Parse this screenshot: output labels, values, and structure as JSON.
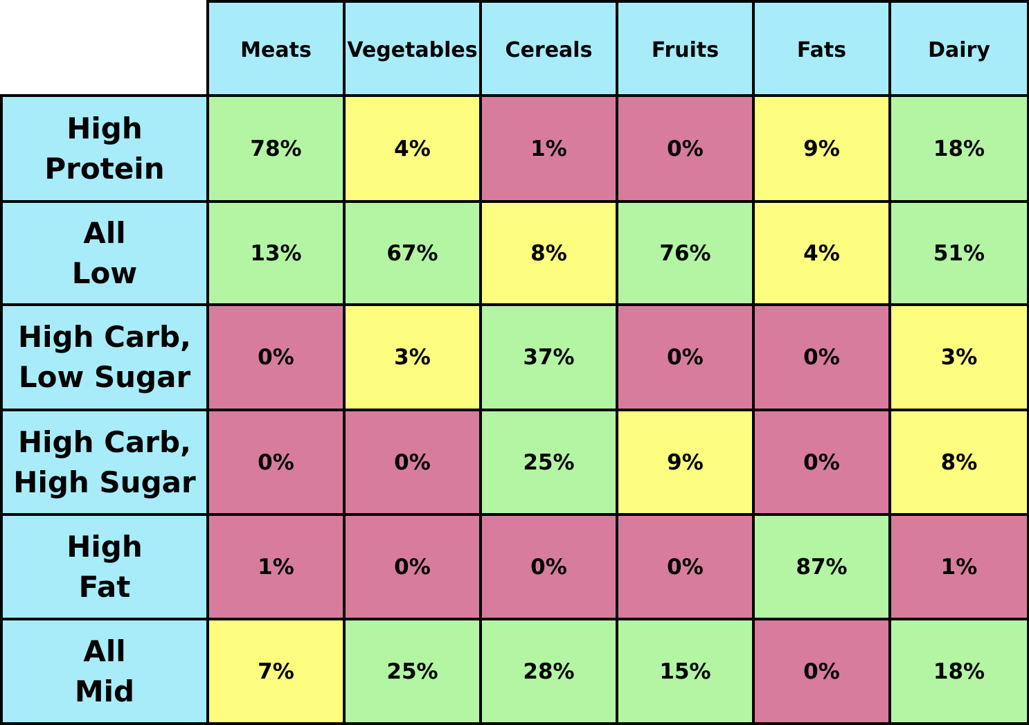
{
  "colors": {
    "header": "#a8ecfa",
    "high": "#b3f5a3",
    "mid": "#fdfd80",
    "low": "#d87c9e",
    "border": "#000000",
    "text": "#000000"
  },
  "chart_data": {
    "type": "table",
    "columns": [
      "Meats",
      "Vegetables",
      "Cereals",
      "Fruits",
      "Fats",
      "Dairy"
    ],
    "rows": [
      {
        "label_lines": [
          "High",
          "Protein"
        ],
        "values": [
          "78%",
          "4%",
          "1%",
          "0%",
          "9%",
          "18%"
        ],
        "levels": [
          "high",
          "mid",
          "low",
          "low",
          "mid",
          "high"
        ]
      },
      {
        "label_lines": [
          "All",
          "Low"
        ],
        "values": [
          "13%",
          "67%",
          "8%",
          "76%",
          "4%",
          "51%"
        ],
        "levels": [
          "high",
          "high",
          "mid",
          "high",
          "mid",
          "high"
        ]
      },
      {
        "label_lines": [
          "High Carb,",
          "Low Sugar"
        ],
        "values": [
          "0%",
          "3%",
          "37%",
          "0%",
          "0%",
          "3%"
        ],
        "levels": [
          "low",
          "mid",
          "high",
          "low",
          "low",
          "mid"
        ]
      },
      {
        "label_lines": [
          "High Carb,",
          "High Sugar"
        ],
        "values": [
          "0%",
          "0%",
          "25%",
          "9%",
          "0%",
          "8%"
        ],
        "levels": [
          "low",
          "low",
          "high",
          "mid",
          "low",
          "mid"
        ]
      },
      {
        "label_lines": [
          "High",
          "Fat"
        ],
        "values": [
          "1%",
          "0%",
          "0%",
          "0%",
          "87%",
          "1%"
        ],
        "levels": [
          "low",
          "low",
          "low",
          "low",
          "high",
          "low"
        ]
      },
      {
        "label_lines": [
          "All",
          "Mid"
        ],
        "values": [
          "7%",
          "25%",
          "28%",
          "15%",
          "0%",
          "18%"
        ],
        "levels": [
          "mid",
          "high",
          "high",
          "high",
          "low",
          "high"
        ]
      }
    ]
  }
}
